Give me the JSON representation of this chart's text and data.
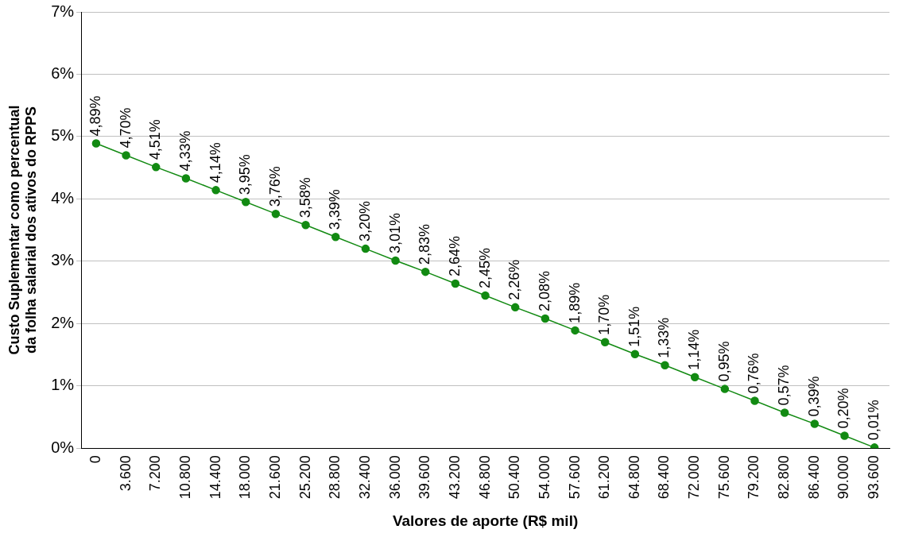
{
  "chart_data": {
    "type": "line",
    "xlabel": "Valores de aporte (R$ mil)",
    "ylabel": "Custo Suplementar como percentual da folha salarial dos ativos do RPPS",
    "categories": [
      "0",
      "3.600",
      "7.200",
      "10.800",
      "14.400",
      "18.000",
      "21.600",
      "25.200",
      "28.800",
      "32.400",
      "36.000",
      "39.600",
      "43.200",
      "46.800",
      "50.400",
      "54.000",
      "57.600",
      "61.200",
      "64.800",
      "68.400",
      "72.000",
      "75.600",
      "79.200",
      "82.800",
      "86.400",
      "90.000",
      "93.600"
    ],
    "series": [
      {
        "color": "#128a12",
        "values": [
          4.89,
          4.7,
          4.51,
          4.33,
          4.14,
          3.95,
          3.76,
          3.58,
          3.39,
          3.2,
          3.01,
          2.83,
          2.64,
          2.45,
          2.26,
          2.08,
          1.89,
          1.7,
          1.51,
          1.33,
          1.14,
          0.95,
          0.76,
          0.57,
          0.39,
          0.2,
          0.01
        ],
        "value_labels": [
          "4,89%",
          "4,70%",
          "4,51%",
          "4,33%",
          "4,14%",
          "3,95%",
          "3,76%",
          "3,58%",
          "3,39%",
          "3,20%",
          "3,01%",
          "2,83%",
          "2,64%",
          "2,45%",
          "2,26%",
          "2,08%",
          "1,89%",
          "1,70%",
          "1,51%",
          "1,33%",
          "1,14%",
          "0,95%",
          "0,76%",
          "0,57%",
          "0,39%",
          "0,20%",
          "0,01%"
        ]
      }
    ],
    "ylim": [
      0,
      7
    ],
    "yticks": [
      {
        "value": 0,
        "label": "0%"
      },
      {
        "value": 1,
        "label": "1%"
      },
      {
        "value": 2,
        "label": "2%"
      },
      {
        "value": 3,
        "label": "3%"
      },
      {
        "value": 4,
        "label": "4%"
      },
      {
        "value": 5,
        "label": "5%"
      },
      {
        "value": 6,
        "label": "6%"
      },
      {
        "value": 7,
        "label": "7%"
      }
    ],
    "grid": "y",
    "legend": false,
    "marker": "circle",
    "line_style": "solid"
  }
}
